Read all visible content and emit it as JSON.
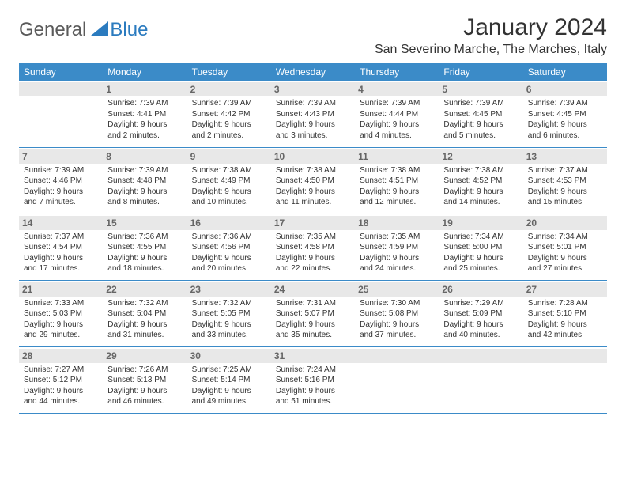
{
  "brand": {
    "part1": "General",
    "part2": "Blue"
  },
  "title": "January 2024",
  "location": "San Severino Marche, The Marches, Italy",
  "colors": {
    "header_bg": "#3b8bc8",
    "header_text": "#ffffff",
    "daynum_bg": "#e8e8e8",
    "daynum_text": "#666666",
    "cell_text": "#333333",
    "border": "#3b8bc8",
    "brand_gray": "#5a5a5a",
    "brand_blue": "#2b7bbf"
  },
  "weekdays": [
    "Sunday",
    "Monday",
    "Tuesday",
    "Wednesday",
    "Thursday",
    "Friday",
    "Saturday"
  ],
  "weeks": [
    [
      null,
      {
        "n": "1",
        "sr": "Sunrise: 7:39 AM",
        "ss": "Sunset: 4:41 PM",
        "d1": "Daylight: 9 hours",
        "d2": "and 2 minutes."
      },
      {
        "n": "2",
        "sr": "Sunrise: 7:39 AM",
        "ss": "Sunset: 4:42 PM",
        "d1": "Daylight: 9 hours",
        "d2": "and 2 minutes."
      },
      {
        "n": "3",
        "sr": "Sunrise: 7:39 AM",
        "ss": "Sunset: 4:43 PM",
        "d1": "Daylight: 9 hours",
        "d2": "and 3 minutes."
      },
      {
        "n": "4",
        "sr": "Sunrise: 7:39 AM",
        "ss": "Sunset: 4:44 PM",
        "d1": "Daylight: 9 hours",
        "d2": "and 4 minutes."
      },
      {
        "n": "5",
        "sr": "Sunrise: 7:39 AM",
        "ss": "Sunset: 4:45 PM",
        "d1": "Daylight: 9 hours",
        "d2": "and 5 minutes."
      },
      {
        "n": "6",
        "sr": "Sunrise: 7:39 AM",
        "ss": "Sunset: 4:45 PM",
        "d1": "Daylight: 9 hours",
        "d2": "and 6 minutes."
      }
    ],
    [
      {
        "n": "7",
        "sr": "Sunrise: 7:39 AM",
        "ss": "Sunset: 4:46 PM",
        "d1": "Daylight: 9 hours",
        "d2": "and 7 minutes."
      },
      {
        "n": "8",
        "sr": "Sunrise: 7:39 AM",
        "ss": "Sunset: 4:48 PM",
        "d1": "Daylight: 9 hours",
        "d2": "and 8 minutes."
      },
      {
        "n": "9",
        "sr": "Sunrise: 7:38 AM",
        "ss": "Sunset: 4:49 PM",
        "d1": "Daylight: 9 hours",
        "d2": "and 10 minutes."
      },
      {
        "n": "10",
        "sr": "Sunrise: 7:38 AM",
        "ss": "Sunset: 4:50 PM",
        "d1": "Daylight: 9 hours",
        "d2": "and 11 minutes."
      },
      {
        "n": "11",
        "sr": "Sunrise: 7:38 AM",
        "ss": "Sunset: 4:51 PM",
        "d1": "Daylight: 9 hours",
        "d2": "and 12 minutes."
      },
      {
        "n": "12",
        "sr": "Sunrise: 7:38 AM",
        "ss": "Sunset: 4:52 PM",
        "d1": "Daylight: 9 hours",
        "d2": "and 14 minutes."
      },
      {
        "n": "13",
        "sr": "Sunrise: 7:37 AM",
        "ss": "Sunset: 4:53 PM",
        "d1": "Daylight: 9 hours",
        "d2": "and 15 minutes."
      }
    ],
    [
      {
        "n": "14",
        "sr": "Sunrise: 7:37 AM",
        "ss": "Sunset: 4:54 PM",
        "d1": "Daylight: 9 hours",
        "d2": "and 17 minutes."
      },
      {
        "n": "15",
        "sr": "Sunrise: 7:36 AM",
        "ss": "Sunset: 4:55 PM",
        "d1": "Daylight: 9 hours",
        "d2": "and 18 minutes."
      },
      {
        "n": "16",
        "sr": "Sunrise: 7:36 AM",
        "ss": "Sunset: 4:56 PM",
        "d1": "Daylight: 9 hours",
        "d2": "and 20 minutes."
      },
      {
        "n": "17",
        "sr": "Sunrise: 7:35 AM",
        "ss": "Sunset: 4:58 PM",
        "d1": "Daylight: 9 hours",
        "d2": "and 22 minutes."
      },
      {
        "n": "18",
        "sr": "Sunrise: 7:35 AM",
        "ss": "Sunset: 4:59 PM",
        "d1": "Daylight: 9 hours",
        "d2": "and 24 minutes."
      },
      {
        "n": "19",
        "sr": "Sunrise: 7:34 AM",
        "ss": "Sunset: 5:00 PM",
        "d1": "Daylight: 9 hours",
        "d2": "and 25 minutes."
      },
      {
        "n": "20",
        "sr": "Sunrise: 7:34 AM",
        "ss": "Sunset: 5:01 PM",
        "d1": "Daylight: 9 hours",
        "d2": "and 27 minutes."
      }
    ],
    [
      {
        "n": "21",
        "sr": "Sunrise: 7:33 AM",
        "ss": "Sunset: 5:03 PM",
        "d1": "Daylight: 9 hours",
        "d2": "and 29 minutes."
      },
      {
        "n": "22",
        "sr": "Sunrise: 7:32 AM",
        "ss": "Sunset: 5:04 PM",
        "d1": "Daylight: 9 hours",
        "d2": "and 31 minutes."
      },
      {
        "n": "23",
        "sr": "Sunrise: 7:32 AM",
        "ss": "Sunset: 5:05 PM",
        "d1": "Daylight: 9 hours",
        "d2": "and 33 minutes."
      },
      {
        "n": "24",
        "sr": "Sunrise: 7:31 AM",
        "ss": "Sunset: 5:07 PM",
        "d1": "Daylight: 9 hours",
        "d2": "and 35 minutes."
      },
      {
        "n": "25",
        "sr": "Sunrise: 7:30 AM",
        "ss": "Sunset: 5:08 PM",
        "d1": "Daylight: 9 hours",
        "d2": "and 37 minutes."
      },
      {
        "n": "26",
        "sr": "Sunrise: 7:29 AM",
        "ss": "Sunset: 5:09 PM",
        "d1": "Daylight: 9 hours",
        "d2": "and 40 minutes."
      },
      {
        "n": "27",
        "sr": "Sunrise: 7:28 AM",
        "ss": "Sunset: 5:10 PM",
        "d1": "Daylight: 9 hours",
        "d2": "and 42 minutes."
      }
    ],
    [
      {
        "n": "28",
        "sr": "Sunrise: 7:27 AM",
        "ss": "Sunset: 5:12 PM",
        "d1": "Daylight: 9 hours",
        "d2": "and 44 minutes."
      },
      {
        "n": "29",
        "sr": "Sunrise: 7:26 AM",
        "ss": "Sunset: 5:13 PM",
        "d1": "Daylight: 9 hours",
        "d2": "and 46 minutes."
      },
      {
        "n": "30",
        "sr": "Sunrise: 7:25 AM",
        "ss": "Sunset: 5:14 PM",
        "d1": "Daylight: 9 hours",
        "d2": "and 49 minutes."
      },
      {
        "n": "31",
        "sr": "Sunrise: 7:24 AM",
        "ss": "Sunset: 5:16 PM",
        "d1": "Daylight: 9 hours",
        "d2": "and 51 minutes."
      },
      null,
      null,
      null
    ]
  ]
}
